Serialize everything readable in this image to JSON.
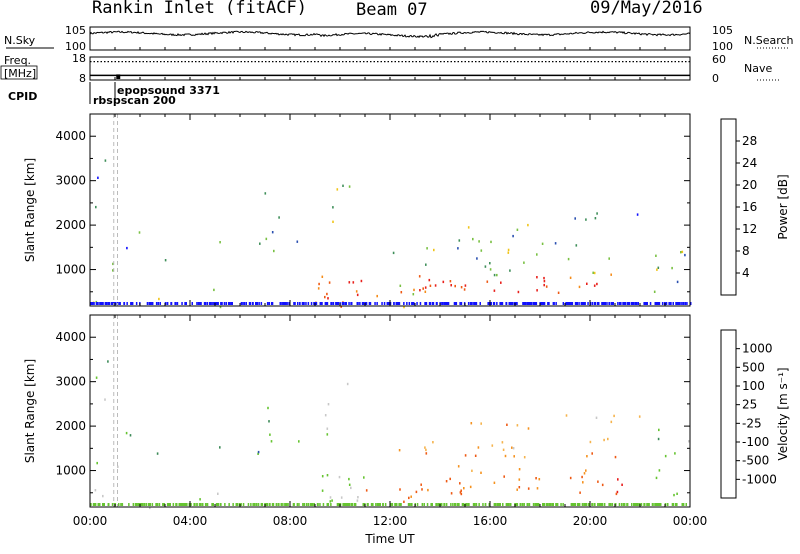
{
  "header": {
    "title": "Rankin Inlet (fitACF)",
    "beam": "Beam 07",
    "date": "09/May/2016"
  },
  "colors": {
    "power_scale": [
      "#1010ff",
      "#2a4fb0",
      "#3f8f5a",
      "#79c043",
      "#f0c419",
      "#f58c1a",
      "#ee5a14",
      "#e8211c"
    ],
    "velocity_scale": [
      "#e81c1c",
      "#ee5a14",
      "#f5921f",
      "#f5b34d",
      "#c8c8c8",
      "#66c431",
      "#3c8a58",
      "#2a55aa",
      "#2438c8"
    ],
    "ground_scatter": "#c8c8c8"
  },
  "chart_data": [
    {
      "type": "line",
      "panel": "noise",
      "series": [
        {
          "name": "N.Sky",
          "style": "solid",
          "note": "10^0 to 10^5 log scale"
        },
        {
          "name": "N.Search",
          "style": "dotted"
        }
      ],
      "left_label": "N.Sky",
      "right_label": "N.Search",
      "left_ticks": [
        "10^5",
        "10^0"
      ],
      "right_ticks": [
        "10^5",
        "10^0"
      ],
      "scale": "log"
    },
    {
      "type": "line",
      "panel": "frequency",
      "left_label": "Freq. [MHz]",
      "right_label": "Nave",
      "left_ticks": [
        "18",
        "8"
      ],
      "right_ticks": [
        "60",
        "0"
      ],
      "series": [
        {
          "name": "Freq.",
          "style": "solid",
          "values_mhz": [
            10.0
          ]
        },
        {
          "name": "Nave",
          "style": "dotted",
          "values": [
            48
          ]
        }
      ]
    },
    {
      "type": "table",
      "panel": "cpid",
      "label": "CPID",
      "entries": [
        {
          "time": "00:00",
          "text": "rbspscan 200"
        },
        {
          "time": "00:50",
          "text": "epopsound 3371"
        }
      ]
    },
    {
      "type": "heatmap",
      "panel": "power",
      "ylabel": "Slant Range [km]",
      "colorbar_label": "Power [dB]",
      "colorbar_ticks": [
        "4",
        "8",
        "12",
        "16",
        "20",
        "24",
        "28"
      ],
      "y_ticks": [
        "1000",
        "2000",
        "3000",
        "4000"
      ],
      "ylim": [
        180,
        4500
      ],
      "xlim_hours": [
        0,
        24
      ]
    },
    {
      "type": "heatmap",
      "panel": "velocity",
      "ylabel": "Slant Range [km]",
      "colorbar_label": "Velocity [m s^-1]",
      "colorbar_ticks": [
        "1000",
        "500",
        "100",
        "25",
        "-25",
        "-100",
        "-500",
        "-1000"
      ],
      "y_ticks": [
        "1000",
        "2000",
        "3000",
        "4000"
      ],
      "ylim": [
        180,
        4500
      ],
      "xlim_hours": [
        0,
        24
      ]
    }
  ],
  "x_axis": {
    "label": "Time UT",
    "ticks": [
      "00:00",
      "04:00",
      "08:00",
      "12:00",
      "16:00",
      "20:00",
      "00:00"
    ]
  }
}
